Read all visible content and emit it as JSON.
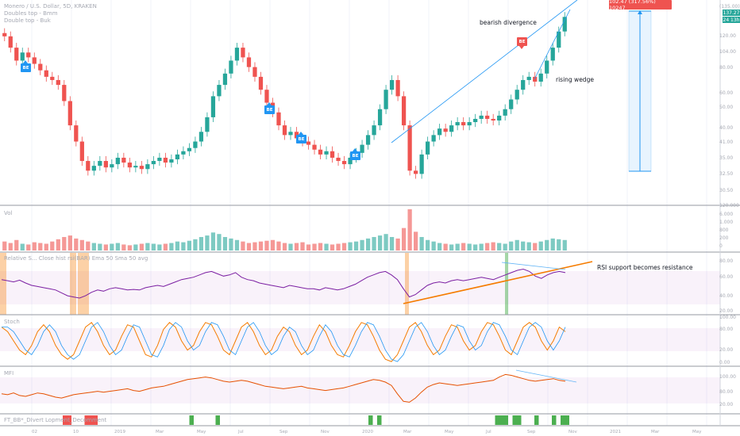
{
  "symbol_legend": {
    "line1": "Monero / U.S. Dollar, 5D, KRAKEN",
    "line2": "Doubles top - Bmm",
    "line3": "Double top - Buk"
  },
  "annotations": {
    "bearish_divergence": "bearish divergence",
    "rising_wedge": "rising wedge",
    "rsi_note": "RSI support becomes resistance"
  },
  "tags": [
    {
      "text": "BE",
      "type": "bull"
    },
    {
      "text": "BE",
      "type": "bull"
    },
    {
      "text": "BE",
      "type": "bull"
    },
    {
      "text": "BE",
      "type": "bull"
    },
    {
      "text": "BE",
      "type": "bear"
    }
  ],
  "measure": {
    "label": "102.47 (317.56%) 10247"
  },
  "price_badges": [
    {
      "text": "137.27",
      "color": "#26a69a"
    },
    {
      "text": "24 13h",
      "color": "#26a69a"
    }
  ],
  "price_axis": [
    "(135.00)",
    "120.00",
    "104.00",
    "80.00",
    "60.00",
    "50.00",
    "40.00",
    "41.00",
    "35.00",
    "32.50",
    "30.50"
  ],
  "pane_titles": {
    "volume": "Vol",
    "rsi": "Relative S... Close hist rsi(BAR) Ema 50 Sma 50 avg",
    "stoch": "Stoch",
    "mfi": "MFI",
    "div": "FT_BB*_DIvert Lopment_Decomment"
  },
  "volume_axis": [
    "120.000",
    "6.000",
    "1.000",
    "800",
    "200",
    "0"
  ],
  "rsi_axis": [
    "80.00",
    "60.00",
    "40.00",
    "20.00"
  ],
  "stoch_axis": [
    "100.00",
    "80.00",
    "20.00",
    "0.00"
  ],
  "mfi_axis": [
    "100.00",
    "80.00",
    "20.00"
  ],
  "x_axis": [
    "02",
    "10",
    "2019",
    "Mar",
    "May",
    "Jul",
    "Sep",
    "Nov",
    "2020",
    "Mar",
    "May",
    "Jul",
    "Sep",
    "Nov",
    "2021",
    "Mar",
    "May"
  ],
  "colors": {
    "up": "#26a69a",
    "down": "#ef5350",
    "rsi": "#7b1fa2",
    "mfi": "#e65100",
    "trend": "#2196f3",
    "orange": "#f57c00"
  },
  "chart_data": {
    "type": "candlestick",
    "title": "Monero / U.S. Dollar, 5D, KRAKEN",
    "closes": [
      125,
      118,
      110,
      115,
      112,
      108,
      104,
      100,
      98,
      95,
      85,
      70,
      60,
      48,
      42,
      45,
      48,
      44,
      46,
      50,
      47,
      44,
      45,
      43,
      46,
      48,
      50,
      47,
      49,
      52,
      54,
      56,
      60,
      66,
      75,
      88,
      95,
      102,
      110,
      118,
      112,
      106,
      100,
      92,
      84,
      78,
      70,
      64,
      66,
      62,
      60,
      58,
      55,
      52,
      54,
      50,
      48,
      46,
      50,
      53,
      58,
      64,
      70,
      80,
      92,
      98,
      88,
      70,
      42,
      40,
      52,
      60,
      64,
      68,
      66,
      70,
      72,
      70,
      72,
      74,
      76,
      74,
      73,
      76,
      80,
      86,
      92,
      98,
      100,
      97,
      102,
      110,
      118,
      128,
      137
    ],
    "volume": [
      12,
      10,
      14,
      9,
      8,
      11,
      10,
      9,
      12,
      15,
      18,
      20,
      16,
      14,
      12,
      10,
      9,
      8,
      9,
      10,
      8,
      7,
      8,
      9,
      10,
      9,
      8,
      9,
      10,
      12,
      11,
      13,
      15,
      18,
      20,
      24,
      22,
      18,
      16,
      14,
      12,
      10,
      11,
      12,
      13,
      14,
      12,
      10,
      9,
      10,
      11,
      8,
      9,
      10,
      9,
      8,
      9,
      10,
      11,
      12,
      14,
      16,
      18,
      20,
      22,
      18,
      16,
      30,
      55,
      25,
      18,
      14,
      12,
      10,
      9,
      8,
      9,
      10,
      9,
      8,
      9,
      10,
      11,
      10,
      9,
      12,
      14,
      12,
      11,
      10,
      12,
      14,
      16,
      15,
      14
    ],
    "rsi": [
      58,
      56,
      54,
      57,
      52,
      48,
      46,
      44,
      42,
      40,
      35,
      30,
      28,
      26,
      30,
      36,
      40,
      38,
      42,
      44,
      42,
      40,
      41,
      40,
      44,
      46,
      48,
      46,
      50,
      54,
      58,
      60,
      62,
      66,
      70,
      72,
      68,
      64,
      66,
      70,
      62,
      58,
      56,
      52,
      50,
      48,
      46,
      44,
      48,
      46,
      44,
      42,
      42,
      40,
      44,
      42,
      40,
      42,
      46,
      50,
      56,
      62,
      66,
      70,
      72,
      66,
      58,
      42,
      28,
      32,
      40,
      48,
      52,
      54,
      52,
      56,
      58,
      56,
      58,
      60,
      62,
      60,
      58,
      62,
      66,
      70,
      74,
      76,
      72,
      64,
      60,
      66,
      70,
      72,
      70
    ],
    "stoch": [
      80,
      70,
      50,
      30,
      20,
      40,
      70,
      85,
      70,
      40,
      20,
      10,
      20,
      50,
      80,
      90,
      70,
      40,
      20,
      30,
      60,
      85,
      80,
      50,
      20,
      15,
      40,
      75,
      90,
      80,
      50,
      30,
      40,
      70,
      90,
      85,
      60,
      30,
      20,
      50,
      80,
      90,
      70,
      40,
      20,
      30,
      60,
      80,
      70,
      40,
      20,
      30,
      60,
      85,
      70,
      40,
      20,
      15,
      40,
      70,
      90,
      85,
      60,
      30,
      10,
      5,
      20,
      50,
      80,
      90,
      70,
      40,
      20,
      30,
      60,
      85,
      80,
      50,
      30,
      40,
      70,
      90,
      85,
      60,
      30,
      20,
      50,
      80,
      90,
      80,
      50,
      30,
      50,
      80,
      70
    ],
    "mfi": [
      40,
      38,
      42,
      36,
      34,
      38,
      42,
      40,
      36,
      32,
      30,
      34,
      38,
      40,
      42,
      44,
      46,
      44,
      46,
      48,
      50,
      52,
      48,
      46,
      50,
      54,
      56,
      58,
      62,
      66,
      70,
      74,
      76,
      78,
      80,
      78,
      74,
      70,
      68,
      70,
      72,
      70,
      66,
      62,
      58,
      56,
      54,
      52,
      54,
      56,
      58,
      54,
      52,
      50,
      48,
      50,
      52,
      54,
      58,
      62,
      66,
      70,
      74,
      72,
      68,
      60,
      40,
      22,
      20,
      30,
      44,
      56,
      62,
      66,
      64,
      62,
      60,
      62,
      64,
      66,
      68,
      70,
      72,
      80,
      86,
      84,
      80,
      76,
      72,
      70,
      72,
      74,
      76,
      72,
      70
    ],
    "divergence_bars": [
      {
        "index": 14,
        "color": "#ef5350"
      },
      {
        "index": 15,
        "color": "#ef5350"
      },
      {
        "index": 19,
        "color": "#ef5350"
      },
      {
        "index": 20,
        "color": "#ef5350"
      },
      {
        "index": 21,
        "color": "#ef5350"
      },
      {
        "index": 43,
        "color": "#4caf50"
      },
      {
        "index": 49,
        "color": "#4caf50"
      },
      {
        "index": 84,
        "color": "#4caf50"
      },
      {
        "index": 86,
        "color": "#4caf50"
      },
      {
        "index": 113,
        "color": "#4caf50"
      },
      {
        "index": 114,
        "color": "#4caf50"
      },
      {
        "index": 115,
        "color": "#4caf50"
      },
      {
        "index": 117,
        "color": "#4caf50"
      },
      {
        "index": 118,
        "color": "#4caf50"
      },
      {
        "index": 122,
        "color": "#4caf50"
      },
      {
        "index": 126,
        "color": "#4caf50"
      },
      {
        "index": 128,
        "color": "#4caf50"
      },
      {
        "index": 129,
        "color": "#4caf50"
      }
    ]
  }
}
